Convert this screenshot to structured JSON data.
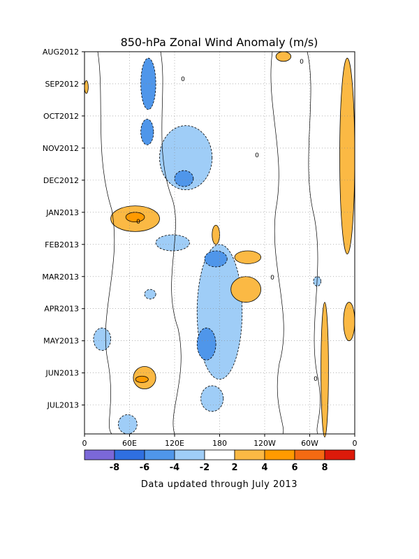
{
  "chart_data": {
    "type": "heatmap",
    "title": "850-hPa Zonal Wind Anomaly (m/s)",
    "footer": "Data updated through July 2013",
    "x_tick_labels": [
      "0",
      "60E",
      "120E",
      "180",
      "120W",
      "60W",
      "0"
    ],
    "x_tick_lons": [
      0,
      60,
      120,
      180,
      240,
      300,
      360
    ],
    "y_tick_labels": [
      "AUG2012",
      "SEP2012",
      "OCT2012",
      "NOV2012",
      "DEC2012",
      "JAN2013",
      "FEB2013",
      "MAR2013",
      "APR2013",
      "MAY2013",
      "JUN2013",
      "JUL2013"
    ],
    "grid": true,
    "colorbar": {
      "levels": [
        -8,
        -6,
        -4,
        -2,
        2,
        4,
        6,
        8
      ],
      "labels": [
        "-8",
        "-6",
        "-4",
        "-2",
        "2",
        "4",
        "6",
        "8"
      ],
      "colors": [
        "#7b68d8",
        "#2f6fe0",
        "#4f96ea",
        "#9fcdf7",
        "#ffffff",
        "#fbb944",
        "#ff9a00",
        "#f46a12",
        "#dc1a0a"
      ]
    },
    "zero_contour_label": "0",
    "anomaly_regions": [
      {
        "sign": "negative",
        "level": 4,
        "lon": [
          75,
          95
        ],
        "month": [
          0.2,
          1.8
        ]
      },
      {
        "sign": "negative",
        "level": 4,
        "lon": [
          75,
          92
        ],
        "month": [
          2.1,
          2.9
        ]
      },
      {
        "sign": "negative",
        "level": 2,
        "lon": [
          100,
          170
        ],
        "month": [
          2.3,
          4.3
        ]
      },
      {
        "sign": "negative",
        "level": 4,
        "lon": [
          120,
          145
        ],
        "month": [
          3.7,
          4.2
        ]
      },
      {
        "sign": "negative",
        "level": 2,
        "lon": [
          95,
          140
        ],
        "month": [
          5.7,
          6.2
        ]
      },
      {
        "sign": "negative",
        "level": 2,
        "lon": [
          150,
          210
        ],
        "month": [
          6.0,
          10.2
        ]
      },
      {
        "sign": "negative",
        "level": 4,
        "lon": [
          160,
          190
        ],
        "month": [
          6.2,
          6.7
        ]
      },
      {
        "sign": "negative",
        "level": 4,
        "lon": [
          150,
          175
        ],
        "month": [
          8.6,
          9.6
        ]
      },
      {
        "sign": "negative",
        "level": 2,
        "lon": [
          12,
          35
        ],
        "month": [
          8.6,
          9.3
        ]
      },
      {
        "sign": "negative",
        "level": 2,
        "lon": [
          80,
          95
        ],
        "month": [
          7.4,
          7.7
        ]
      },
      {
        "sign": "negative",
        "level": 2,
        "lon": [
          305,
          315
        ],
        "month": [
          7.0,
          7.3
        ]
      },
      {
        "sign": "negative",
        "level": 2,
        "lon": [
          155,
          185
        ],
        "month": [
          10.4,
          11.2
        ]
      },
      {
        "sign": "negative",
        "level": 2,
        "lon": [
          45,
          70
        ],
        "month": [
          11.3,
          11.9
        ]
      },
      {
        "sign": "positive",
        "level": 2,
        "lon": [
          340,
          360
        ],
        "month": [
          0.2,
          6.3
        ]
      },
      {
        "sign": "positive",
        "level": 2,
        "lon": [
          0,
          5
        ],
        "month": [
          0.9,
          1.3
        ]
      },
      {
        "sign": "positive",
        "level": 2,
        "lon": [
          35,
          100
        ],
        "month": [
          4.8,
          5.6
        ]
      },
      {
        "sign": "positive",
        "level": 4,
        "lon": [
          55,
          80
        ],
        "month": [
          5.0,
          5.3
        ]
      },
      {
        "sign": "positive",
        "level": 2,
        "lon": [
          65,
          95
        ],
        "month": [
          9.8,
          10.5
        ]
      },
      {
        "sign": "positive",
        "level": 4,
        "lon": [
          68,
          85
        ],
        "month": [
          10.1,
          10.3
        ]
      },
      {
        "sign": "positive",
        "level": 2,
        "lon": [
          200,
          235
        ],
        "month": [
          6.2,
          6.6
        ]
      },
      {
        "sign": "positive",
        "level": 2,
        "lon": [
          195,
          235
        ],
        "month": [
          7.0,
          7.8
        ]
      },
      {
        "sign": "positive",
        "level": 2,
        "lon": [
          315,
          325
        ],
        "month": [
          7.8,
          12.0
        ]
      },
      {
        "sign": "positive",
        "level": 2,
        "lon": [
          345,
          360
        ],
        "month": [
          7.8,
          9.0
        ]
      },
      {
        "sign": "positive",
        "level": 2,
        "lon": [
          170,
          180
        ],
        "month": [
          5.4,
          6.0
        ]
      },
      {
        "sign": "positive",
        "level": 2,
        "lon": [
          255,
          275
        ],
        "month": [
          0.0,
          0.3
        ]
      }
    ]
  }
}
